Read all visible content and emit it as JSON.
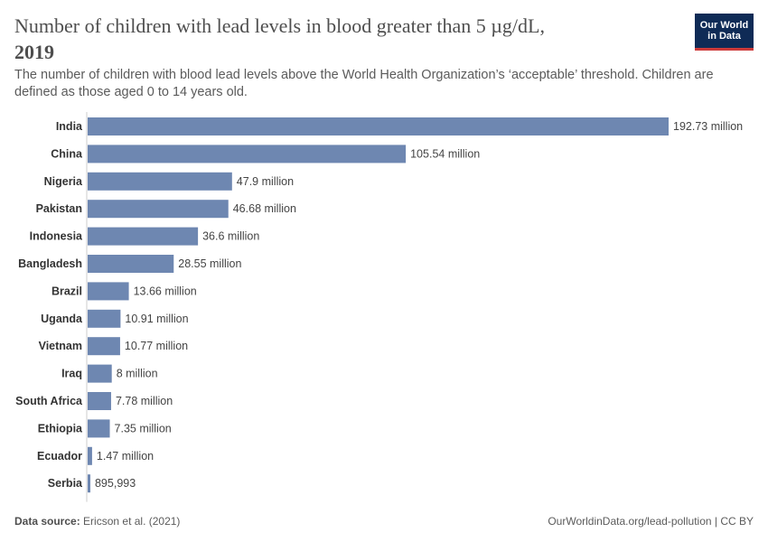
{
  "header": {
    "title": "Number of children with lead levels in blood greater than 5 µg/dL,",
    "title_year": "2019",
    "subtitle": "The number of children with blood lead levels above the World Health Organization’s ‘acceptable’ threshold. Children are defined as those aged 0 to 14 years old."
  },
  "logo": {
    "line1": "Our World",
    "line2": "in Data"
  },
  "footer": {
    "source_label": "Data source:",
    "source_text": "Ericson et al. (2021)",
    "url_text": "OurWorldinData.org/lead-pollution | CC BY"
  },
  "colors": {
    "bar": "#6e87b1",
    "logo_bg": "#0f2b56",
    "logo_accent": "#cd3a3a"
  },
  "chart_data": {
    "type": "bar",
    "orientation": "horizontal",
    "categories": [
      "India",
      "China",
      "Nigeria",
      "Pakistan",
      "Indonesia",
      "Bangladesh",
      "Brazil",
      "Uganda",
      "Vietnam",
      "Iraq",
      "South Africa",
      "Ethiopia",
      "Ecuador",
      "Serbia"
    ],
    "values": [
      192730000,
      105540000,
      47900000,
      46680000,
      36600000,
      28550000,
      13660000,
      10910000,
      10770000,
      8000000,
      7780000,
      7350000,
      1470000,
      895993
    ],
    "value_labels": [
      "192.73 million",
      "105.54 million",
      "47.9 million",
      "46.68 million",
      "36.6 million",
      "28.55 million",
      "13.66 million",
      "10.91 million",
      "10.77 million",
      "8 million",
      "7.78 million",
      "7.35 million",
      "1.47 million",
      "895,993"
    ],
    "xlim": [
      0,
      192730000
    ],
    "grid": false,
    "legend": "none"
  }
}
